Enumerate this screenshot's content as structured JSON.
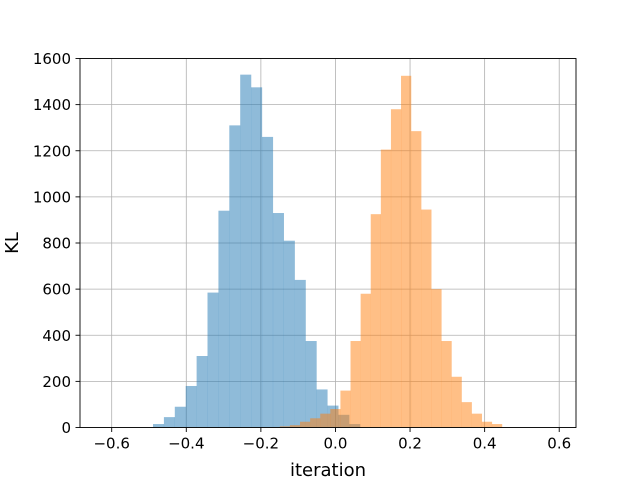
{
  "chart_data": {
    "type": "bar",
    "subtype": "histogram",
    "title": "",
    "xlabel": "iteration",
    "ylabel": "KL",
    "xlim": [
      -0.685,
      0.645
    ],
    "ylim": [
      0,
      1600
    ],
    "xticks": [
      -0.6,
      -0.4,
      -0.2,
      0.0,
      0.2,
      0.4,
      0.6
    ],
    "xtick_labels": [
      "−0.6",
      "−0.4",
      "−0.2",
      "0.0",
      "0.2",
      "0.4",
      "0.6"
    ],
    "yticks": [
      0,
      200,
      400,
      600,
      800,
      1000,
      1200,
      1400,
      1600
    ],
    "ytick_labels": [
      "0",
      "200",
      "400",
      "600",
      "800",
      "1000",
      "1200",
      "1400",
      "1600"
    ],
    "grid": true,
    "alpha": 0.5,
    "series": [
      {
        "color": "#1f77b4",
        "bin_width": 0.02923,
        "bin_edges": [
          -0.4892,
          -0.46,
          -0.4308,
          -0.4015,
          -0.3723,
          -0.3431,
          -0.3138,
          -0.2846,
          -0.2554,
          -0.2262,
          -0.1969,
          -0.1677,
          -0.1385,
          -0.1092,
          -0.08,
          -0.0508,
          -0.0215,
          0.0077,
          0.0369,
          0.0662
        ],
        "values": [
          15,
          45,
          90,
          180,
          310,
          585,
          940,
          1310,
          1530,
          1475,
          1260,
          930,
          810,
          640,
          375,
          165,
          95,
          55,
          15
        ]
      },
      {
        "color": "#ff7f0e",
        "bin_width": 0.02708,
        "bin_edges": [
          -0.1492,
          -0.1221,
          -0.095,
          -0.0679,
          -0.0408,
          -0.0138,
          0.0133,
          0.0404,
          0.0675,
          0.0946,
          0.1217,
          0.1488,
          0.1758,
          0.2029,
          0.23,
          0.2571,
          0.2842,
          0.3113,
          0.3383,
          0.3654,
          0.3925,
          0.4196,
          0.4467
        ],
        "values": [
          5,
          10,
          25,
          40,
          60,
          80,
          160,
          375,
          580,
          925,
          1205,
          1380,
          1525,
          1285,
          945,
          600,
          375,
          220,
          110,
          60,
          25,
          15
        ]
      }
    ]
  }
}
